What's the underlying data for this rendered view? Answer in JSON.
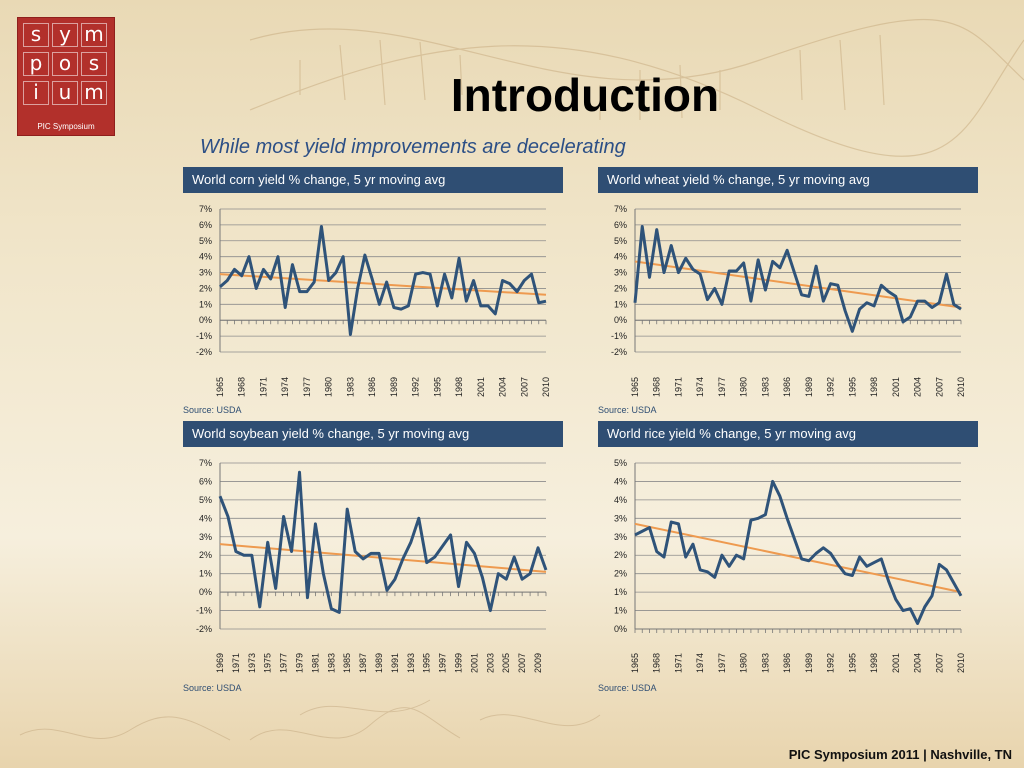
{
  "logo": {
    "letters": [
      "s",
      "y",
      "m",
      "p",
      "o",
      "s",
      "i",
      "u",
      "m"
    ],
    "caption": "PIC Symposium"
  },
  "slide": {
    "title": "Introduction",
    "subtitle": "While most yield improvements are decelerating",
    "footer": "PIC Symposium 2011 | Nashville, TN"
  },
  "colors": {
    "series": "#2f5379",
    "trend": "#ee9a4f",
    "panel_header": "#2f4e73",
    "brand_red": "#b2302b"
  },
  "chart_data": [
    {
      "type": "line",
      "title": "World corn yield % change, 5 yr moving avg",
      "source": "Source: USDA",
      "x_start": 1965,
      "x_end": 2010,
      "x_tick_labels": [
        "1965",
        "1968",
        "1971",
        "1974",
        "1977",
        "1980",
        "1983",
        "1986",
        "1989",
        "1992",
        "1995",
        "1998",
        "2001",
        "2004",
        "2007",
        "2010"
      ],
      "y_tick_labels": [
        "7%",
        "6%",
        "5%",
        "4%",
        "3%",
        "2%",
        "1%",
        "0%",
        "-1%",
        "-2%"
      ],
      "ylim": [
        -2,
        7
      ],
      "series": [
        {
          "values": [
            2.1,
            2.5,
            3.2,
            2.8,
            4.0,
            2.0,
            3.2,
            2.6,
            4.0,
            0.8,
            3.5,
            1.8,
            1.8,
            2.4,
            5.9,
            2.5,
            3.0,
            4.0,
            -0.9,
            2.0,
            4.1,
            2.6,
            1.0,
            2.4,
            0.8,
            0.7,
            0.9,
            2.9,
            3.0,
            2.9,
            0.9,
            2.9,
            1.4,
            3.9,
            1.2,
            2.5,
            0.9,
            0.9,
            0.4,
            2.5,
            2.3,
            1.8,
            2.5,
            2.9,
            1.1,
            1.2
          ]
        }
      ],
      "trend": [
        2.9,
        1.6
      ]
    },
    {
      "type": "line",
      "title": "World wheat yield % change, 5 yr moving avg",
      "source": "Source: USDA",
      "x_start": 1965,
      "x_end": 2010,
      "x_tick_labels": [
        "1965",
        "1968",
        "1971",
        "1974",
        "1977",
        "1980",
        "1983",
        "1986",
        "1989",
        "1992",
        "1995",
        "1998",
        "2001",
        "2004",
        "2007",
        "2010"
      ],
      "y_tick_labels": [
        "7%",
        "6%",
        "5%",
        "4%",
        "3%",
        "2%",
        "1%",
        "0%",
        "-1%",
        "-2%"
      ],
      "ylim": [
        -2,
        7
      ],
      "series": [
        {
          "values": [
            1.1,
            5.9,
            2.7,
            5.7,
            3.0,
            4.7,
            3.0,
            3.9,
            3.2,
            2.9,
            1.3,
            2.0,
            1.0,
            3.1,
            3.1,
            3.6,
            1.2,
            3.8,
            1.9,
            3.7,
            3.3,
            4.4,
            3.0,
            1.6,
            1.5,
            3.4,
            1.2,
            2.3,
            2.2,
            0.6,
            -0.7,
            0.7,
            1.1,
            0.9,
            2.2,
            1.8,
            1.5,
            -0.1,
            0.2,
            1.2,
            1.2,
            0.8,
            1.1,
            2.9,
            1.0,
            0.7
          ]
        }
      ],
      "trend": [
        3.7,
        0.8
      ]
    },
    {
      "type": "line",
      "title": "World soybean yield % change, 5 yr moving avg",
      "source": "Source: USDA",
      "x_start": 1969,
      "x_end": 2010,
      "x_tick_labels": [
        "1969",
        "1971",
        "1973",
        "1975",
        "1977",
        "1979",
        "1981",
        "1983",
        "1985",
        "1987",
        "1989",
        "1991",
        "1993",
        "1995",
        "1997",
        "1999",
        "2001",
        "2003",
        "2005",
        "2007",
        "2009"
      ],
      "y_tick_labels": [
        "7%",
        "6%",
        "5%",
        "4%",
        "3%",
        "2%",
        "1%",
        "0%",
        "-1%",
        "-2%"
      ],
      "ylim": [
        -2,
        7
      ],
      "series": [
        {
          "values": [
            5.2,
            4.1,
            2.2,
            2.0,
            2.0,
            -0.8,
            2.7,
            0.2,
            4.1,
            2.2,
            6.5,
            -0.3,
            3.7,
            1.0,
            -0.9,
            -1.1,
            4.5,
            2.2,
            1.8,
            2.1,
            2.1,
            0.1,
            0.7,
            1.8,
            2.7,
            4.0,
            1.6,
            1.9,
            2.5,
            3.1,
            0.3,
            2.7,
            2.1,
            0.8,
            -1.0,
            1.0,
            0.7,
            1.9,
            0.7,
            1.0,
            2.4,
            1.2
          ]
        }
      ],
      "trend": [
        2.6,
        1.1
      ]
    },
    {
      "type": "line",
      "title": "World rice yield % change, 5 yr moving avg",
      "source": "Source: USDA",
      "x_start": 1965,
      "x_end": 2010,
      "x_tick_labels": [
        "1965",
        "1968",
        "1971",
        "1974",
        "1977",
        "1980",
        "1983",
        "1986",
        "1989",
        "1992",
        "1995",
        "1998",
        "2001",
        "2004",
        "2007",
        "2010"
      ],
      "y_tick_labels": [
        "5%",
        "4%",
        "4%",
        "3%",
        "3%",
        "2%",
        "2%",
        "1%",
        "1%",
        "0%"
      ],
      "ylim": [
        0,
        4.5
      ],
      "series": [
        {
          "values": [
            2.55,
            2.65,
            2.75,
            2.1,
            1.95,
            2.9,
            2.85,
            1.95,
            2.3,
            1.6,
            1.55,
            1.4,
            2.0,
            1.7,
            2.0,
            1.9,
            2.95,
            3.0,
            3.1,
            4.0,
            3.6,
            3.0,
            2.45,
            1.9,
            1.85,
            2.05,
            2.2,
            2.05,
            1.75,
            1.5,
            1.45,
            1.95,
            1.7,
            1.8,
            1.9,
            1.3,
            0.8,
            0.5,
            0.55,
            0.15,
            0.6,
            0.9,
            1.75,
            1.6,
            1.25,
            0.9
          ]
        }
      ],
      "trend": [
        2.85,
        1.0
      ]
    }
  ]
}
